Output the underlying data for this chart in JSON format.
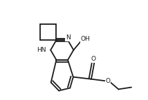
{
  "bg_color": "#ffffff",
  "line_color": "#1a1a1a",
  "line_width": 1.3,
  "font_size": 6.5,
  "figsize": [
    2.14,
    1.45
  ],
  "dpi": 100,
  "xlim": [
    -1.2,
    4.8
  ],
  "ylim": [
    -2.8,
    2.2
  ]
}
